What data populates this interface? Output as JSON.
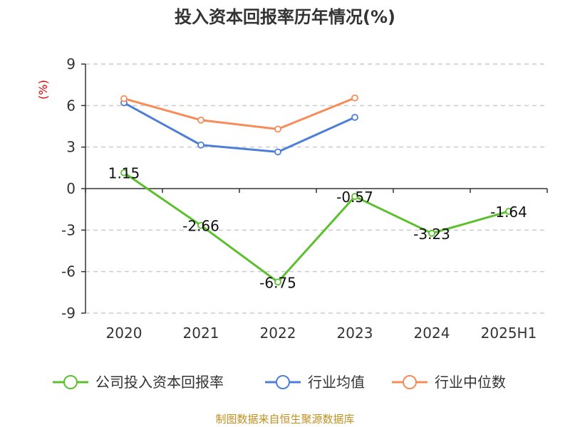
{
  "chart_data": {
    "type": "line",
    "title": "投入资本回报率历年情况(%)",
    "ylabel": "(%)",
    "categories": [
      "2020",
      "2021",
      "2022",
      "2023",
      "2024",
      "2025H1"
    ],
    "ylim": [
      -9,
      9
    ],
    "yticks": [
      9,
      6,
      3,
      0,
      -3,
      -6,
      -9
    ],
    "grid": true,
    "legend_position": "bottom",
    "series": [
      {
        "name": "公司投入资本回报率",
        "color": "#5cc02e",
        "values": [
          1.15,
          -2.66,
          -6.75,
          -0.57,
          -3.23,
          -1.64
        ],
        "data_labels": [
          "1.15",
          "-2.66",
          "-6.75",
          "-0.57",
          "-3.23",
          "-1.64"
        ]
      },
      {
        "name": "行业均值",
        "color": "#4e7fd8",
        "values": [
          6.2,
          3.15,
          2.65,
          5.15,
          null,
          null
        ]
      },
      {
        "name": "行业中位数",
        "color": "#f58c5a",
        "values": [
          6.5,
          4.95,
          4.3,
          6.55,
          null,
          null
        ]
      }
    ],
    "source": "制图数据来自恒生聚源数据库"
  }
}
